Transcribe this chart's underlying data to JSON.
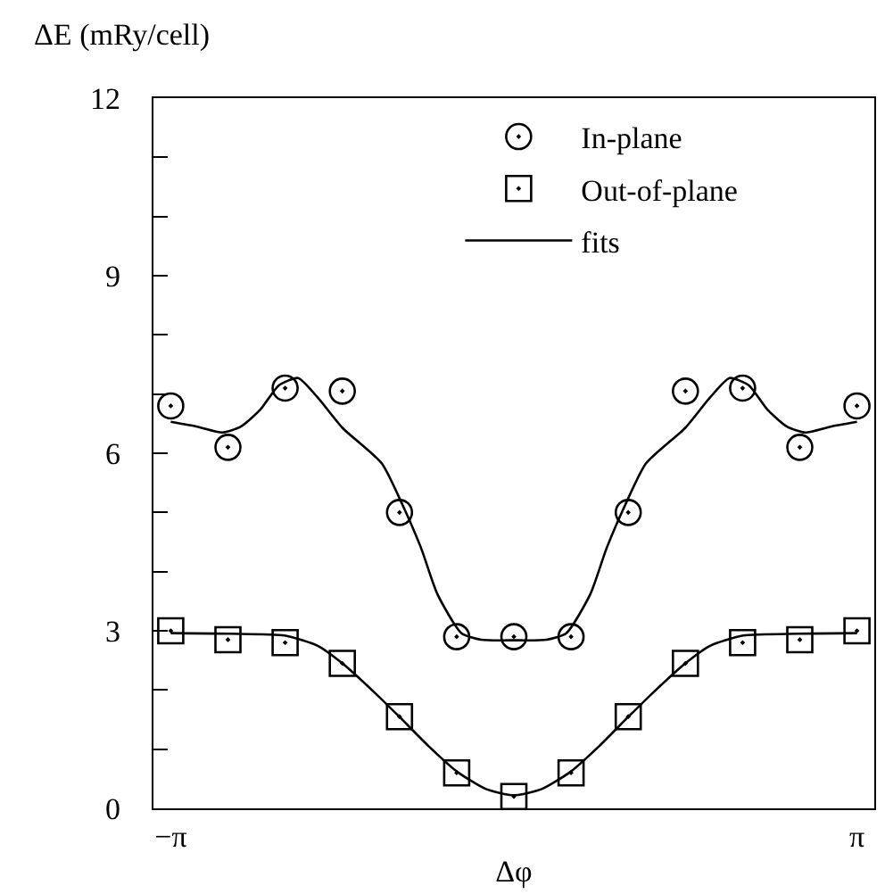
{
  "chart_data": {
    "type": "scatter",
    "ylabel": "ΔE (mRy/cell)",
    "xlabel": "Δφ",
    "xlim": [
      -3.3,
      3.3
    ],
    "xticks": [
      {
        "value": -3.1416,
        "label": "−π"
      },
      {
        "value": 3.1416,
        "label": "π"
      }
    ],
    "ylim": [
      0,
      12
    ],
    "yticks": [
      0,
      {
        "value": 1,
        "label": null
      },
      {
        "value": 2,
        "label": null
      },
      3,
      {
        "value": 4,
        "label": null
      },
      {
        "value": 5,
        "label": null
      },
      6,
      {
        "value": 7,
        "label": null
      },
      {
        "value": 8,
        "label": null
      },
      9,
      {
        "value": 10,
        "label": null
      },
      {
        "value": 11,
        "label": null
      },
      12
    ],
    "grid": false,
    "legend": "top right",
    "series": [
      {
        "name": "In-plane",
        "type": "scatter",
        "marker": "circle",
        "color": "#000000",
        "x": [
          -3.1416,
          -2.618,
          -2.0944,
          -1.5708,
          -1.0472,
          -0.5236,
          0,
          0.5236,
          1.0472,
          1.5708,
          2.0944,
          2.618,
          3.1416
        ],
        "values": [
          6.8,
          6.1,
          7.1,
          7.05,
          5.0,
          2.9,
          2.9,
          2.9,
          5.0,
          7.05,
          7.1,
          6.1,
          6.8
        ]
      },
      {
        "name": "Out-of-plane",
        "type": "scatter",
        "marker": "square",
        "color": "#000000",
        "x": [
          -3.1416,
          -2.618,
          -2.0944,
          -1.5708,
          -1.0472,
          -0.5236,
          0,
          0.5236,
          1.0472,
          1.5708,
          2.0944,
          2.618,
          3.1416
        ],
        "values": [
          3.0,
          2.85,
          2.8,
          2.45,
          1.55,
          0.6,
          0.2,
          0.6,
          1.55,
          2.45,
          2.8,
          2.85,
          3.0
        ]
      },
      {
        "name": "fits",
        "type": "line",
        "marker": "none",
        "color": "#000000",
        "x": [
          -3.1416,
          -2.9,
          -2.67,
          -2.5,
          -2.32,
          -2.15,
          -1.975,
          -1.8,
          -1.57,
          -1.21,
          -1.02,
          -0.85,
          -0.7,
          -0.48,
          -0.3,
          0,
          0.3,
          0.48,
          0.7,
          0.85,
          1.02,
          1.21,
          1.57,
          1.8,
          1.975,
          2.15,
          2.32,
          2.5,
          2.67,
          2.9,
          3.1416
        ],
        "values": [
          6.53,
          6.45,
          6.35,
          6.45,
          6.74,
          7.15,
          7.27,
          6.95,
          6.43,
          5.83,
          5.13,
          4.4,
          3.62,
          2.96,
          2.85,
          2.84,
          2.85,
          2.96,
          3.62,
          4.4,
          5.13,
          5.83,
          6.43,
          6.95,
          7.27,
          7.15,
          6.74,
          6.45,
          6.35,
          6.45,
          6.53
        ]
      },
      {
        "type": "line",
        "marker": "none",
        "color": "#000000",
        "x": [
          -3.1416,
          -2.6,
          -2.1,
          -1.8,
          -1.57,
          -1.3,
          -1.05,
          -0.78,
          -0.52,
          -0.26,
          0,
          0.26,
          0.52,
          0.78,
          1.05,
          1.3,
          1.57,
          1.8,
          2.1,
          2.6,
          3.1416
        ],
        "values": [
          2.96,
          2.95,
          2.92,
          2.75,
          2.45,
          2.0,
          1.55,
          1.05,
          0.62,
          0.33,
          0.22,
          0.33,
          0.62,
          1.05,
          1.55,
          2.0,
          2.45,
          2.75,
          2.92,
          2.95,
          2.96
        ]
      }
    ]
  }
}
